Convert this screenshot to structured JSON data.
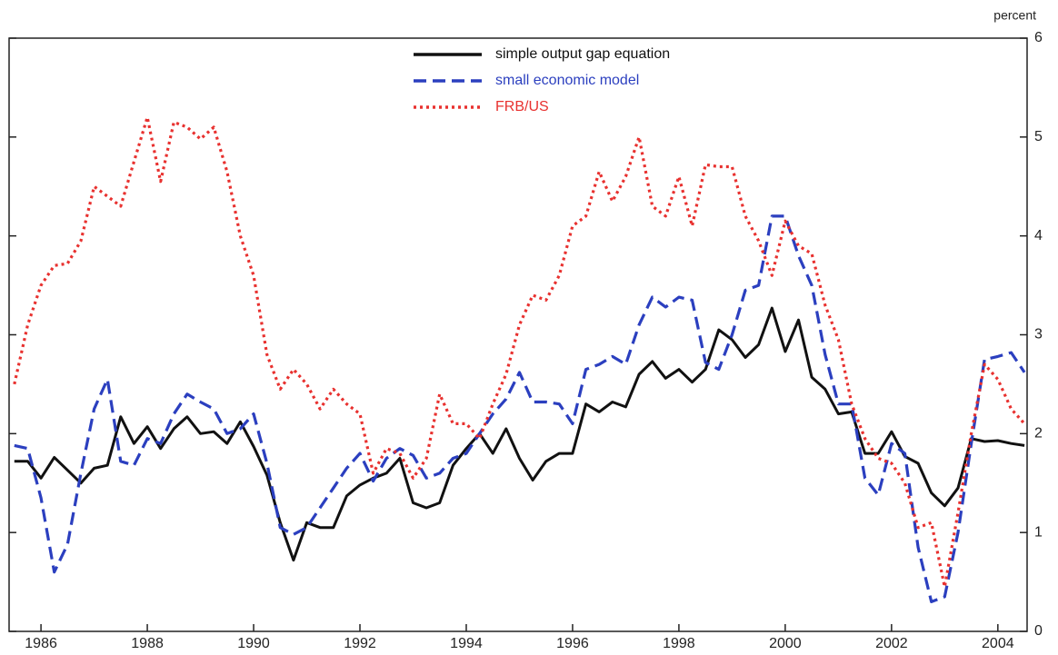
{
  "chart_data": {
    "type": "line",
    "y_label": "percent",
    "x": [
      1985.5,
      1985.75,
      1986,
      1986.25,
      1986.5,
      1986.75,
      1987,
      1987.25,
      1987.5,
      1987.75,
      1988,
      1988.25,
      1988.5,
      1988.75,
      1989,
      1989.25,
      1989.5,
      1989.75,
      1990,
      1990.25,
      1990.5,
      1990.75,
      1991,
      1991.25,
      1991.5,
      1991.75,
      1992,
      1992.25,
      1992.5,
      1992.75,
      1993,
      1993.25,
      1993.5,
      1993.75,
      1994,
      1994.25,
      1994.5,
      1994.75,
      1995,
      1995.25,
      1995.5,
      1995.75,
      1996,
      1996.25,
      1996.5,
      1996.75,
      1997,
      1997.25,
      1997.5,
      1997.75,
      1998,
      1998.25,
      1998.5,
      1998.75,
      1999,
      1999.25,
      1999.5,
      1999.75,
      2000,
      2000.25,
      2000.5,
      2000.75,
      2001,
      2001.25,
      2001.5,
      2001.75,
      2002,
      2002.25,
      2002.5,
      2002.75,
      2003,
      2003.25,
      2003.5,
      2003.75,
      2004,
      2004.25,
      2004.5
    ],
    "series": [
      {
        "name": "simple output gap equation",
        "color": "#111111",
        "dash": "solid",
        "values": [
          1.72,
          1.72,
          1.55,
          1.76,
          1.63,
          1.5,
          1.65,
          1.68,
          2.17,
          1.9,
          2.07,
          1.85,
          2.05,
          2.17,
          2.0,
          2.02,
          1.9,
          2.12,
          1.87,
          1.58,
          1.1,
          0.72,
          1.1,
          1.05,
          1.05,
          1.37,
          1.48,
          1.55,
          1.6,
          1.75,
          1.3,
          1.25,
          1.3,
          1.68,
          1.85,
          2.0,
          1.8,
          2.05,
          1.75,
          1.53,
          1.72,
          1.8,
          1.8,
          2.3,
          2.22,
          2.32,
          2.27,
          2.6,
          2.73,
          2.56,
          2.65,
          2.52,
          2.65,
          3.05,
          2.95,
          2.77,
          2.9,
          3.27,
          2.83,
          3.15,
          2.57,
          2.45,
          2.2,
          2.22,
          1.8,
          1.8,
          2.02,
          1.77,
          1.7,
          1.4,
          1.27,
          1.45,
          1.95,
          1.92,
          1.93,
          1.9,
          1.88
        ]
      },
      {
        "name": "small economic model",
        "color": "#2b3fbf",
        "dash": "dashed",
        "values": [
          1.88,
          1.85,
          1.35,
          0.6,
          0.88,
          1.6,
          2.25,
          2.55,
          1.72,
          1.68,
          1.95,
          1.9,
          2.2,
          2.4,
          2.32,
          2.25,
          2.0,
          2.05,
          2.2,
          1.7,
          1.05,
          0.98,
          1.05,
          1.25,
          1.45,
          1.65,
          1.8,
          1.52,
          1.75,
          1.85,
          1.78,
          1.55,
          1.6,
          1.75,
          1.8,
          2.0,
          2.2,
          2.35,
          2.62,
          2.32,
          2.32,
          2.3,
          2.1,
          2.65,
          2.7,
          2.78,
          2.7,
          3.1,
          3.38,
          3.28,
          3.38,
          3.35,
          2.72,
          2.65,
          3.0,
          3.45,
          3.5,
          4.2,
          4.2,
          3.8,
          3.5,
          2.8,
          2.3,
          2.3,
          1.55,
          1.38,
          1.9,
          1.8,
          0.85,
          0.3,
          0.35,
          1.0,
          1.9,
          2.75,
          2.78,
          2.82,
          2.62
        ]
      },
      {
        "name": "FRB/US",
        "color": "#e8312f",
        "dash": "dotted",
        "values": [
          2.5,
          3.1,
          3.5,
          3.7,
          3.72,
          3.95,
          4.5,
          4.4,
          4.3,
          4.75,
          5.2,
          4.55,
          5.15,
          5.1,
          4.98,
          5.1,
          4.65,
          4.0,
          3.6,
          2.8,
          2.45,
          2.65,
          2.5,
          2.25,
          2.45,
          2.3,
          2.2,
          1.6,
          1.85,
          1.8,
          1.55,
          1.75,
          2.4,
          2.1,
          2.1,
          1.95,
          2.3,
          2.6,
          3.1,
          3.4,
          3.35,
          3.6,
          4.1,
          4.2,
          4.65,
          4.35,
          4.6,
          5.0,
          4.3,
          4.2,
          4.6,
          4.1,
          4.72,
          4.7,
          4.7,
          4.2,
          3.95,
          3.6,
          4.15,
          3.9,
          3.82,
          3.3,
          2.95,
          2.3,
          1.95,
          1.75,
          1.7,
          1.5,
          1.05,
          1.1,
          0.45,
          1.2,
          2.0,
          2.7,
          2.55,
          2.25,
          2.1
        ]
      }
    ],
    "xlim": [
      1985.4,
      2004.55
    ],
    "xticks": [
      1986,
      1988,
      1990,
      1992,
      1994,
      1996,
      1998,
      2000,
      2002,
      2004
    ],
    "ylim": [
      0,
      6
    ],
    "yticks": [
      0,
      1,
      2,
      3,
      4,
      5,
      6
    ],
    "y_axis_side": "right",
    "grid": false,
    "legend": "top"
  }
}
